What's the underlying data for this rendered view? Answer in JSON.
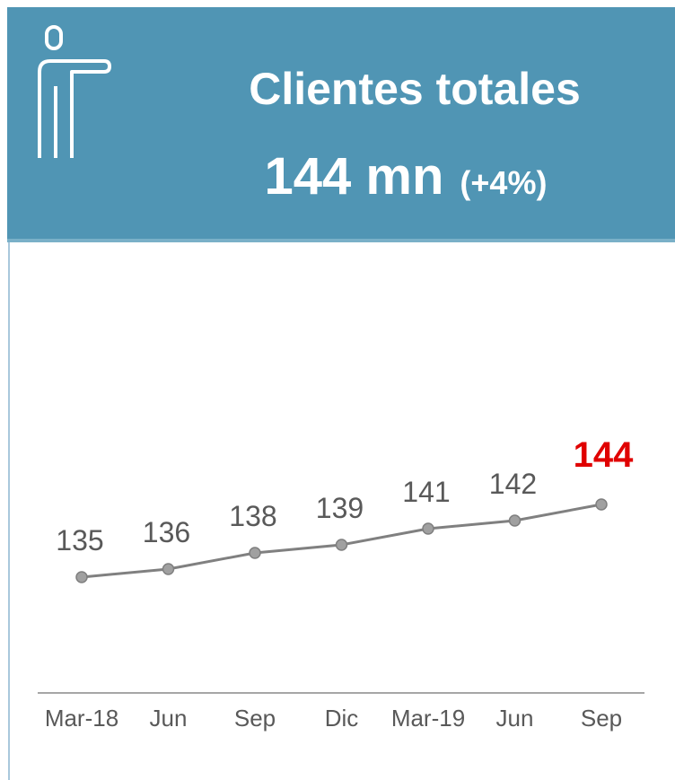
{
  "header": {
    "title": "Clientes totales",
    "value": "144 mn",
    "change": "(+4%)"
  },
  "chart_data": {
    "type": "line",
    "categories": [
      "Mar-18",
      "Jun",
      "Sep",
      "Dic",
      "Mar-19",
      "Jun",
      "Sep"
    ],
    "series": [
      {
        "name": "Clientes totales",
        "color": "#808080",
        "values": [
          135,
          136,
          138,
          139,
          141,
          142,
          144
        ]
      }
    ],
    "highlight_color": "#e00000"
  }
}
